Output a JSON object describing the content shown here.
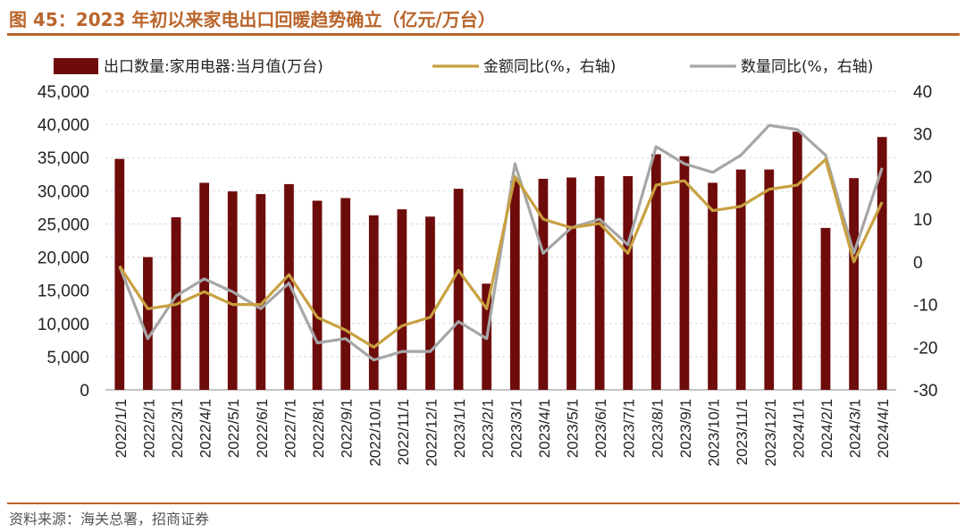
{
  "header": {
    "title": "图 45：2023 年初以来家电出口回暖趋势确立（亿元/万台）"
  },
  "footer": {
    "source": "资料来源：海关总署，招商证券"
  },
  "colors": {
    "bar": "#6e0b0b",
    "amount_line": "#c8a040",
    "volume_line": "#a6a6a6",
    "accent": "#b9652b"
  },
  "chart_data": {
    "type": "bar",
    "categories": [
      "2022/1/1",
      "2022/2/1",
      "2022/3/1",
      "2022/4/1",
      "2022/5/1",
      "2022/6/1",
      "2022/7/1",
      "2022/8/1",
      "2022/9/1",
      "2022/10/1",
      "2022/11/1",
      "2022/12/1",
      "2023/1/1",
      "2023/2/1",
      "2023/3/1",
      "2023/4/1",
      "2023/5/1",
      "2023/6/1",
      "2023/7/1",
      "2023/8/1",
      "2023/9/1",
      "2023/10/1",
      "2023/11/1",
      "2023/12/1",
      "2024/1/1",
      "2024/2/1",
      "2024/3/1",
      "2024/4/1"
    ],
    "series": [
      {
        "name": "出口数量:家用电器:当月值(万台)",
        "type": "bar",
        "axis": "left",
        "values": [
          34800,
          20000,
          26000,
          31200,
          29900,
          29500,
          31000,
          28500,
          28900,
          26300,
          27200,
          26100,
          30300,
          16000,
          31500,
          31800,
          32000,
          32200,
          32200,
          35500,
          35200,
          31200,
          33200,
          33200,
          38900,
          24400,
          31900,
          38100
        ]
      },
      {
        "name": "金额同比(%，右轴)",
        "type": "line",
        "axis": "right",
        "values": [
          -1,
          -11,
          -10,
          -7,
          -10,
          -10,
          -3,
          -13,
          -16,
          -20,
          -15,
          -13,
          -2,
          -11,
          20,
          10,
          8,
          9,
          2,
          18,
          19,
          12,
          13,
          17,
          18,
          24,
          0,
          14
        ]
      },
      {
        "name": "数量同比(%，右轴)",
        "type": "line",
        "axis": "right",
        "values": [
          -1,
          -18,
          -8,
          -4,
          -7,
          -11,
          -5,
          -19,
          -18,
          -23,
          -21,
          -21,
          -14,
          -18,
          23,
          2,
          8,
          10,
          4,
          27,
          23,
          21,
          25,
          32,
          31,
          25,
          2,
          22
        ]
      }
    ],
    "yleft": {
      "min": 0,
      "max": 45000,
      "step": 5000,
      "ticks": [
        "0",
        "5,000",
        "10,000",
        "15,000",
        "20,000",
        "25,000",
        "30,000",
        "35,000",
        "40,000",
        "45,000"
      ]
    },
    "yright": {
      "min": -30,
      "max": 40,
      "step": 10,
      "ticks": [
        "-30",
        "-20",
        "-10",
        "0",
        "10",
        "20",
        "30",
        "40"
      ]
    },
    "grid": true,
    "legend_position": "top"
  }
}
